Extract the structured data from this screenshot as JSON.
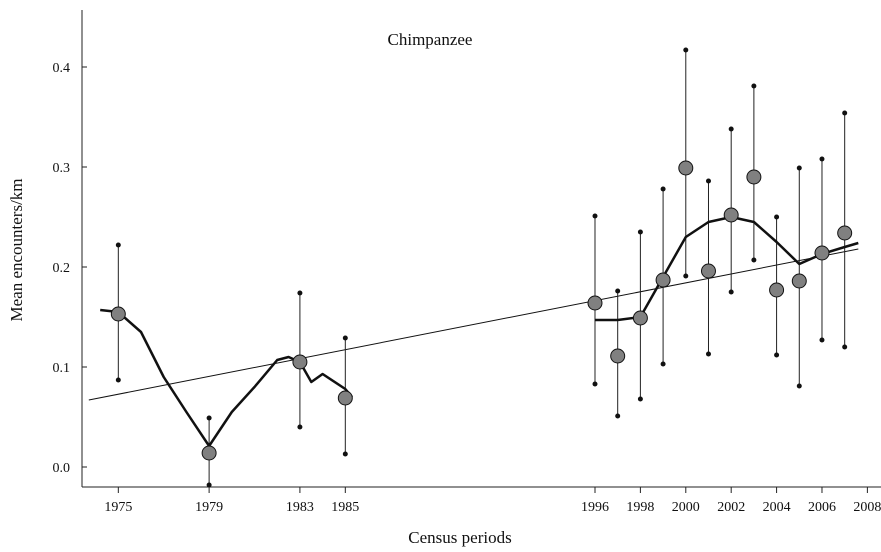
{
  "chart_data": {
    "type": "scatter",
    "title": "Chimpanzee",
    "x_label": "Census periods",
    "y_label": "Mean encounters/km",
    "xlim": [
      1973.4,
      2008.6
    ],
    "ylim": [
      -0.02,
      0.457
    ],
    "xticks": [
      1975,
      1979,
      1983,
      1985,
      1996,
      1998,
      2000,
      2002,
      2004,
      2006,
      2008
    ],
    "yticks": [
      {
        "value": 0,
        "label": "0.0"
      },
      0.1,
      0.2,
      0.3,
      0.4
    ],
    "points": {
      "x": [
        1975,
        1979,
        1983,
        1985,
        1996,
        1997,
        1998,
        1999,
        2000,
        2001,
        2002,
        2003,
        2004,
        2005,
        2006,
        2007
      ],
      "values": [
        0.153,
        0.014,
        0.105,
        0.069,
        0.164,
        0.111,
        0.149,
        0.187,
        0.299,
        0.196,
        0.252,
        0.29,
        0.177,
        0.186,
        0.214,
        0.234
      ],
      "low": [
        0.087,
        -0.018,
        0.04,
        0.013,
        0.083,
        0.051,
        0.068,
        0.103,
        0.191,
        0.113,
        0.175,
        0.207,
        0.112,
        0.081,
        0.127,
        0.12
      ],
      "high": [
        0.222,
        0.049,
        0.174,
        0.129,
        0.251,
        0.176,
        0.235,
        0.278,
        0.417,
        0.286,
        0.338,
        0.381,
        0.25,
        0.299,
        0.308,
        0.354
      ],
      "color": "#808080"
    },
    "smooth": {
      "x": [
        1974.2,
        1975,
        1976,
        1977,
        1978,
        1979,
        1980,
        1981,
        1982,
        1982.5,
        1983,
        1983.5,
        1984,
        1985,
        1985.3,
        1990,
        1996,
        1997,
        1998,
        1999,
        2000,
        2001,
        2002,
        2003,
        2004,
        2005,
        2006,
        2007,
        2007.6
      ],
      "values": [
        0.157,
        0.155,
        0.135,
        0.09,
        0.055,
        0.021,
        0.055,
        0.08,
        0.107,
        0.11,
        0.105,
        0.085,
        0.093,
        0.078,
        0.07,
        null,
        0.147,
        0.147,
        0.15,
        0.19,
        0.23,
        0.245,
        0.25,
        0.245,
        0.225,
        0.203,
        0.213,
        0.22,
        0.224
      ]
    },
    "trend": {
      "x": [
        1973.7,
        2007.6
      ],
      "values": [
        0.067,
        0.218
      ]
    }
  }
}
